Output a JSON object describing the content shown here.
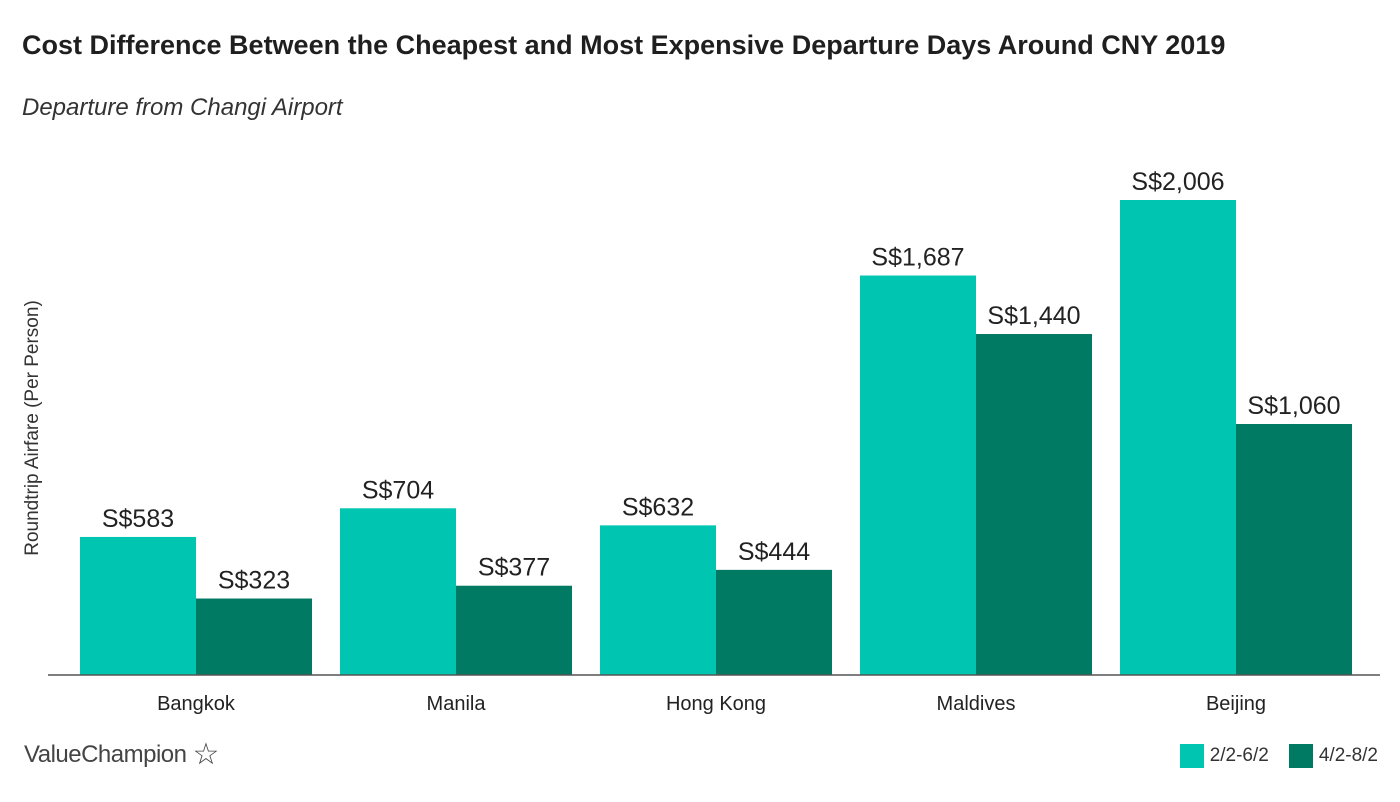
{
  "header": {
    "title": "Cost Difference Between the Cheapest and Most Expensive Departure Days Around CNY 2019",
    "subtitle": "Departure from Changi Airport"
  },
  "footer": {
    "brand": "ValueChampion",
    "brand_icon": "star-outline-icon"
  },
  "chart_data": {
    "type": "bar",
    "categories": [
      "Bangkok",
      "Manila",
      "Hong Kong",
      "Maldives",
      "Beijing"
    ],
    "series": [
      {
        "name": "2/2-6/2",
        "color": "#00c5b0",
        "values": [
          583,
          704,
          632,
          1687,
          2006
        ],
        "labels": [
          "S$583",
          "S$704",
          "S$632",
          "S$1,687",
          "S$2,006"
        ]
      },
      {
        "name": "4/2-8/2",
        "color": "#007a63",
        "values": [
          323,
          377,
          444,
          1440,
          1060
        ],
        "labels": [
          "S$323",
          "S$377",
          "S$444",
          "S$1,440",
          "S$1,060"
        ]
      }
    ],
    "ylabel": "Roundtrip Airfare (Per Person)",
    "xlabel": "",
    "ylim": [
      0,
      2006
    ],
    "grid": false,
    "legend_position": "bottom-right"
  }
}
